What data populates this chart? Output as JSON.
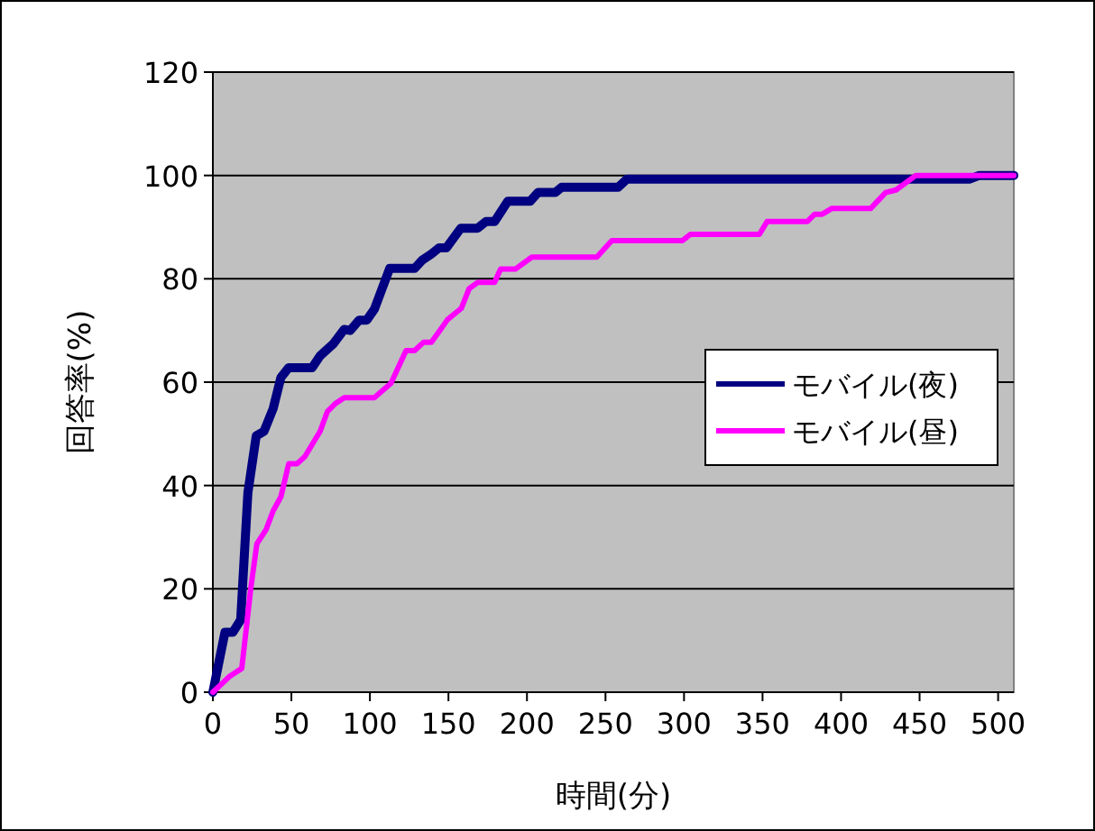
{
  "chart_data": {
    "type": "line",
    "xlabel": "時間(分)",
    "ylabel": "回答率(%)",
    "xlim": [
      0,
      510
    ],
    "ylim": [
      0,
      120
    ],
    "xticks": [
      0,
      50,
      100,
      150,
      200,
      250,
      300,
      350,
      400,
      450,
      500
    ],
    "yticks": [
      0,
      20,
      40,
      60,
      80,
      100,
      120
    ],
    "grid": "y",
    "legend": "right",
    "series": [
      {
        "name": "モバイル(夜)",
        "color": "#000080",
        "x": [
          0,
          7.7,
          12.7,
          17.7,
          22.3,
          27.6,
          32.6,
          38.4,
          43.3,
          48.3,
          63.2,
          68.3,
          76.7,
          83.6,
          87.4,
          93.1,
          98,
          102.8,
          112.6,
          128.4,
          133.3,
          139.1,
          144.1,
          148.7,
          157.9,
          168.6,
          174,
          179.4,
          187.8,
          202,
          207,
          218,
          222,
          258,
          263.7,
          482,
          488,
          510
        ],
        "values": [
          0,
          11.6,
          11.6,
          14,
          38.6,
          49.6,
          50.5,
          54.9,
          60.9,
          62.8,
          62.8,
          65.1,
          67.4,
          70.2,
          70,
          72,
          72,
          74.1,
          82,
          82,
          83.6,
          84.8,
          86,
          86,
          89.8,
          89.8,
          91.1,
          91.1,
          95,
          95,
          96.7,
          96.7,
          97.7,
          97.7,
          99.3,
          99.3,
          100,
          100
        ]
      },
      {
        "name": "モバイル(昼)",
        "color": "#ff00ff",
        "x": [
          0,
          10.8,
          18.4,
          24.1,
          28,
          33.8,
          38.4,
          43.3,
          48.3,
          53.6,
          58.6,
          68.3,
          72.9,
          77.8,
          83.6,
          102.8,
          113.4,
          123,
          128.4,
          134.1,
          139.1,
          144.1,
          149.4,
          158.2,
          163.2,
          168.6,
          179.4,
          183.2,
          192.8,
          203.1,
          244.5,
          254,
          299,
          304,
          348,
          352.9,
          378.6,
          383.2,
          388,
          394,
          418.8,
          428.4,
          435,
          447.6,
          510
        ],
        "values": [
          0,
          3.1,
          4.6,
          20,
          28.7,
          31.4,
          35.1,
          37.8,
          44.2,
          44.2,
          45.6,
          50.5,
          54.3,
          55.8,
          57,
          57,
          59.8,
          66.1,
          66.1,
          67.7,
          67.7,
          69.8,
          72.1,
          74.3,
          78.1,
          79.3,
          79.3,
          81.9,
          81.9,
          84.2,
          84.2,
          87.4,
          87.4,
          88.6,
          88.6,
          91.1,
          91.1,
          92.5,
          92.5,
          93.6,
          93.6,
          96.7,
          97.2,
          100,
          100
        ]
      }
    ]
  }
}
